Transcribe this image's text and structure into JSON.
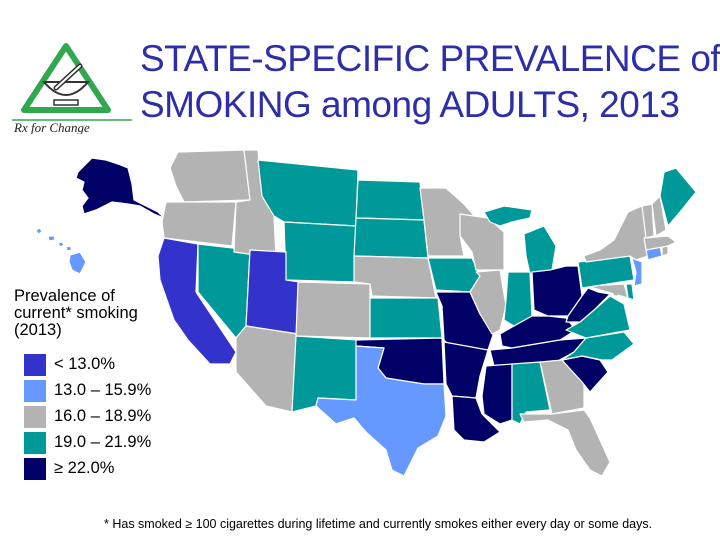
{
  "title": {
    "line1": "STATE-SPECIFIC PREVALENCE of",
    "line2": "SMOKING among ADULTS, 2013"
  },
  "logo": {
    "text": "Rx for Change",
    "icon": "mortar-pestle-icon"
  },
  "legend": {
    "title_line1": "Prevalence of",
    "title_line2": "current* smoking",
    "title_line3": "(2013)",
    "items": [
      {
        "label": "< 13.0%",
        "color": "#3333cc"
      },
      {
        "label": "13.0 – 15.9%",
        "color": "#6699ff"
      },
      {
        "label": "16.0 – 18.9%",
        "color": "#b3b3b3"
      },
      {
        "label": "19.0 – 21.9%",
        "color": "#009999"
      },
      {
        "label": "≥ 22.0%",
        "color": "#000066"
      }
    ]
  },
  "footnote": "* Has smoked ≥ 100 cigarettes during lifetime and currently smokes either every day or some days.",
  "map_data": {
    "categories": [
      "< 13.0%",
      "13.0 – 15.9%",
      "16.0 – 18.9%",
      "19.0 – 21.9%",
      "≥ 22.0%"
    ],
    "colors": [
      "#3333cc",
      "#6699ff",
      "#b3b3b3",
      "#009999",
      "#000066"
    ],
    "states": {
      "WA": 2,
      "OR": 2,
      "CA": 0,
      "NV": 3,
      "ID": 2,
      "MT": 3,
      "WY": 3,
      "UT": 0,
      "AZ": 2,
      "CO": 2,
      "NM": 3,
      "ND": 3,
      "SD": 3,
      "NE": 2,
      "KS": 3,
      "OK": 4,
      "TX": 1,
      "MN": 2,
      "IA": 3,
      "MO": 4,
      "AR": 4,
      "LA": 4,
      "WI": 2,
      "IL": 2,
      "MI": 3,
      "IN": 3,
      "OH": 4,
      "KY": 4,
      "TN": 4,
      "MS": 4,
      "AL": 3,
      "GA": 2,
      "FL": 2,
      "SC": 4,
      "NC": 3,
      "VA": 3,
      "WV": 4,
      "PA": 3,
      "NY": 2,
      "VT": 2,
      "NH": 2,
      "ME": 3,
      "MA": 2,
      "CT": 1,
      "RI": 2,
      "NJ": 1,
      "DE": 3,
      "MD": 2,
      "DC": 2,
      "AK": 4,
      "HI": 1
    }
  }
}
